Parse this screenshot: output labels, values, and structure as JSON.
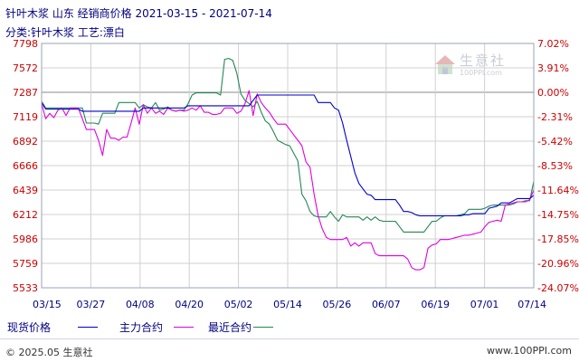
{
  "header": {
    "title": "针叶木浆 山东 经销商价格 2021-03-15 - 2021-07-14",
    "subtitle": "分类:针叶木浆 工艺:漂白"
  },
  "footer": {
    "copyright": "© 2025.05 生意社",
    "url": "www.100PPI.com"
  },
  "watermark": {
    "name": "生意社",
    "url": "100PPI.com"
  },
  "legend": {
    "spot": "现货价格",
    "main": "主力合约",
    "recent": "最近合约"
  },
  "chart_data": {
    "type": "line",
    "x_ticks": [
      "03/15",
      "03/27",
      "04/08",
      "04/20",
      "05/02",
      "05/14",
      "05/26",
      "06/07",
      "06/19",
      "07/01",
      "07/14"
    ],
    "y_left_ticks": [
      7798,
      7572,
      7287,
      7119,
      6892,
      6666,
      6439,
      6212,
      5986,
      5759,
      5533
    ],
    "y_right_ticks": [
      "7.02%",
      "3.91%",
      "0.00%",
      "-2.31%",
      "-5.42%",
      "-8.53%",
      "-11.64%",
      "-14.75%",
      "-17.85%",
      "-20.96%",
      "-24.07%"
    ],
    "ylim": [
      5533,
      7798
    ],
    "baseline": 7287,
    "grid": true,
    "colors": {
      "spot": "#0000cc",
      "main": "#e000e0",
      "recent": "#228855",
      "grid": "#d0d0d0",
      "axis": "#000080"
    },
    "series": [
      {
        "name": "现货价格",
        "key": "spot",
        "x": [
          0,
          1,
          2,
          3,
          4,
          5,
          6,
          7,
          8,
          9,
          10,
          11,
          12,
          13,
          14,
          15,
          16,
          17,
          18,
          19,
          20,
          21,
          22,
          23,
          24,
          25,
          26,
          27,
          28,
          29,
          30,
          31,
          32,
          33,
          34,
          35,
          36,
          37,
          38,
          39,
          40,
          41,
          42,
          43,
          44,
          45,
          46,
          47,
          48,
          49,
          50,
          51,
          52,
          53,
          54,
          55,
          56,
          57,
          58,
          59,
          60,
          61,
          62,
          63,
          64,
          65,
          66,
          67,
          68,
          69,
          70,
          71,
          72,
          73,
          74,
          75,
          76,
          77,
          78,
          79,
          80,
          81,
          82,
          83,
          84,
          85,
          86,
          87,
          88,
          89,
          90,
          91,
          92,
          93,
          94,
          95,
          96,
          97,
          98,
          99,
          100,
          101,
          102,
          103,
          104,
          105,
          106,
          107,
          108,
          109,
          110,
          111,
          112,
          113,
          114,
          115,
          116,
          117,
          118,
          119,
          120,
          121
        ],
        "values": [
          7250,
          7190,
          7190,
          7190,
          7190,
          7190,
          7190,
          7190,
          7190,
          7190,
          7170,
          7170,
          7170,
          7170,
          7170,
          7170,
          7170,
          7170,
          7170,
          7170,
          7170,
          7170,
          7170,
          7170,
          7170,
          7200,
          7200,
          7200,
          7200,
          7200,
          7200,
          7200,
          7200,
          7200,
          7200,
          7200,
          7220,
          7220,
          7220,
          7220,
          7220,
          7220,
          7220,
          7220,
          7220,
          7220,
          7220,
          7220,
          7220,
          7220,
          7220,
          7220,
          7270,
          7320,
          7320,
          7320,
          7320,
          7320,
          7320,
          7320,
          7320,
          7320,
          7320,
          7320,
          7320,
          7320,
          7320,
          7320,
          7250,
          7250,
          7250,
          7250,
          7200,
          7180,
          7060,
          6900,
          6750,
          6600,
          6500,
          6450,
          6400,
          6390,
          6350,
          6350,
          6350,
          6350,
          6350,
          6350,
          6300,
          6240,
          6240,
          6230,
          6210,
          6200,
          6200,
          6200,
          6200,
          6200,
          6200,
          6200,
          6200,
          6200,
          6200,
          6200,
          6210,
          6210,
          6220,
          6220,
          6220,
          6220,
          6270,
          6280,
          6290,
          6320,
          6320,
          6320,
          6340,
          6360,
          6360,
          6360,
          6360,
          6390
        ]
      },
      {
        "name": "主力合约",
        "key": "main",
        "x": [
          0,
          1,
          2,
          3,
          4,
          5,
          6,
          7,
          8,
          9,
          10,
          11,
          12,
          13,
          14,
          15,
          16,
          17,
          18,
          19,
          20,
          21,
          22,
          23,
          24,
          25,
          26,
          27,
          28,
          29,
          30,
          31,
          32,
          33,
          34,
          35,
          36,
          37,
          38,
          39,
          40,
          41,
          42,
          43,
          44,
          45,
          46,
          47,
          48,
          49,
          50,
          51,
          52,
          53,
          54,
          55,
          56,
          57,
          58,
          59,
          60,
          61,
          62,
          63,
          64,
          65,
          66,
          67,
          68,
          69,
          70,
          71,
          72,
          73,
          74,
          75,
          76,
          77,
          78,
          79,
          80,
          81,
          82,
          83,
          84,
          85,
          86,
          87,
          88,
          89,
          90,
          91,
          92,
          93,
          94,
          95,
          96,
          97,
          98,
          99,
          100,
          101,
          102,
          103,
          104,
          105,
          106,
          107,
          108,
          109,
          110,
          111,
          112,
          113,
          114,
          115,
          116,
          117,
          118,
          119,
          120,
          121
        ],
        "values": [
          7240,
          7100,
          7150,
          7110,
          7180,
          7200,
          7130,
          7200,
          7200,
          7200,
          7100,
          7000,
          7000,
          7000,
          6900,
          6760,
          7000,
          6920,
          6920,
          6900,
          6930,
          6930,
          7060,
          7200,
          7050,
          7230,
          7150,
          7200,
          7150,
          7170,
          7140,
          7200,
          7180,
          7170,
          7180,
          7170,
          7180,
          7200,
          7180,
          7220,
          7160,
          7160,
          7140,
          7140,
          7150,
          7200,
          7200,
          7200,
          7150,
          7170,
          7240,
          7360,
          7130,
          7330,
          7250,
          7200,
          7160,
          7100,
          7050,
          7050,
          7050,
          7000,
          6950,
          6900,
          6850,
          6700,
          6650,
          6400,
          6200,
          6080,
          6000,
          5980,
          5980,
          5980,
          5980,
          6000,
          5920,
          5950,
          5920,
          5950,
          5950,
          5950,
          5850,
          5830,
          5830,
          5830,
          5830,
          5830,
          5830,
          5830,
          5800,
          5720,
          5700,
          5700,
          5720,
          5900,
          5930,
          5940,
          5980,
          5980,
          5980,
          5990,
          6000,
          6010,
          6020,
          6020,
          6030,
          6040,
          6050,
          6100,
          6140,
          6150,
          6160,
          6150,
          6300,
          6310,
          6320,
          6330,
          6330,
          6330,
          6350,
          6440
        ]
      },
      {
        "name": "最近合约",
        "key": "recent",
        "x": [
          0,
          1,
          2,
          3,
          4,
          5,
          6,
          7,
          8,
          9,
          10,
          11,
          12,
          13,
          14,
          15,
          16,
          17,
          18,
          19,
          20,
          21,
          22,
          23,
          24,
          25,
          26,
          27,
          28,
          29,
          30,
          31,
          32,
          33,
          34,
          35,
          36,
          37,
          38,
          39,
          40,
          41,
          42,
          43,
          44,
          45,
          46,
          47,
          48,
          49,
          50,
          51,
          52,
          53,
          54,
          55,
          56,
          57,
          58,
          59,
          60,
          61,
          62,
          63,
          64,
          65,
          66,
          67,
          68,
          69,
          70,
          71,
          72,
          73,
          74,
          75,
          76,
          77,
          78,
          79,
          80,
          81,
          82,
          83,
          84,
          85,
          86,
          87,
          88,
          89,
          90,
          91,
          92,
          93,
          94,
          95,
          96,
          97,
          98,
          99,
          100,
          101,
          102,
          103,
          104,
          105,
          106,
          107,
          108,
          109,
          110,
          111,
          112,
          113,
          114,
          115,
          116,
          117,
          118,
          119,
          120,
          121
        ],
        "values": [
          7260,
          7200,
          7200,
          7200,
          7200,
          7200,
          7200,
          7200,
          7200,
          7200,
          7200,
          7060,
          7060,
          7060,
          7050,
          7150,
          7150,
          7150,
          7150,
          7250,
          7250,
          7250,
          7250,
          7250,
          7200,
          7230,
          7210,
          7200,
          7250,
          7180,
          7190,
          7210,
          7180,
          7170,
          7180,
          7180,
          7240,
          7320,
          7340,
          7340,
          7340,
          7340,
          7340,
          7340,
          7320,
          7650,
          7660,
          7640,
          7520,
          7330,
          7270,
          7240,
          7210,
          7260,
          7160,
          7080,
          7050,
          6980,
          6900,
          6880,
          6860,
          6850,
          6780,
          6710,
          6400,
          6340,
          6240,
          6200,
          6190,
          6190,
          6190,
          6240,
          6190,
          6150,
          6210,
          6190,
          6190,
          6190,
          6190,
          6160,
          6190,
          6160,
          6190,
          6160,
          6150,
          6150,
          6150,
          6150,
          6100,
          6050,
          6050,
          6050,
          6050,
          6050,
          6050,
          6100,
          6150,
          6150,
          6180,
          6200,
          6200,
          6200,
          6200,
          6210,
          6220,
          6260,
          6260,
          6260,
          6260,
          6270,
          6290,
          6300,
          6300,
          6300,
          6300,
          6300,
          6310,
          6330,
          6330,
          6340,
          6340,
          6520
        ]
      }
    ]
  }
}
